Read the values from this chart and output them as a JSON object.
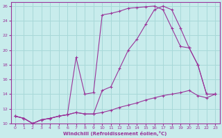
{
  "xlabel": "Windchill (Refroidissement éolien,°C)",
  "bg_color": "#c8ecec",
  "grid_color": "#a8d8d8",
  "line_color": "#993399",
  "xlim": [
    -0.5,
    23.5
  ],
  "ylim": [
    10,
    26.5
  ],
  "xticks": [
    0,
    1,
    2,
    3,
    4,
    5,
    6,
    7,
    8,
    9,
    10,
    11,
    12,
    13,
    14,
    15,
    16,
    17,
    18,
    19,
    20,
    21,
    22,
    23
  ],
  "yticks": [
    10,
    12,
    14,
    16,
    18,
    20,
    22,
    24,
    26
  ],
  "series1_x": [
    0,
    1,
    2,
    3,
    4,
    5,
    6,
    7,
    8,
    9,
    10,
    11,
    12,
    13,
    14,
    15,
    16,
    17,
    18,
    19,
    20,
    21,
    22,
    23
  ],
  "series1_y": [
    11,
    10.7,
    10,
    10.5,
    10.7,
    11,
    11.2,
    11.5,
    11.3,
    11.3,
    11.5,
    11.8,
    12.2,
    12.5,
    12.8,
    13.2,
    13.5,
    13.8,
    14.0,
    14.2,
    14.5,
    13.8,
    13.5,
    14.0
  ],
  "series2_x": [
    0,
    1,
    2,
    3,
    4,
    5,
    6,
    7,
    8,
    9,
    10,
    11,
    12,
    13,
    14,
    15,
    16,
    17,
    18,
    19,
    20,
    21,
    22,
    23
  ],
  "series2_y": [
    11,
    10.7,
    10,
    10.5,
    10.7,
    11,
    11.2,
    19.0,
    14.0,
    14.2,
    24.8,
    25.0,
    25.3,
    25.7,
    25.8,
    25.9,
    26.0,
    25.5,
    23.0,
    20.5,
    20.3,
    18.0,
    14.0,
    14.0
  ],
  "series3_x": [
    0,
    1,
    2,
    3,
    4,
    5,
    6,
    7,
    8,
    9,
    10,
    11,
    12,
    13,
    14,
    15,
    16,
    17,
    18,
    19,
    20,
    21,
    22,
    23
  ],
  "series3_y": [
    11,
    10.7,
    10,
    10.5,
    10.7,
    11,
    11.2,
    11.5,
    11.3,
    11.3,
    14.5,
    15.0,
    17.5,
    20.0,
    21.5,
    23.5,
    25.5,
    26.0,
    25.5,
    23.0,
    20.3,
    18.0,
    14.0,
    14.0
  ]
}
